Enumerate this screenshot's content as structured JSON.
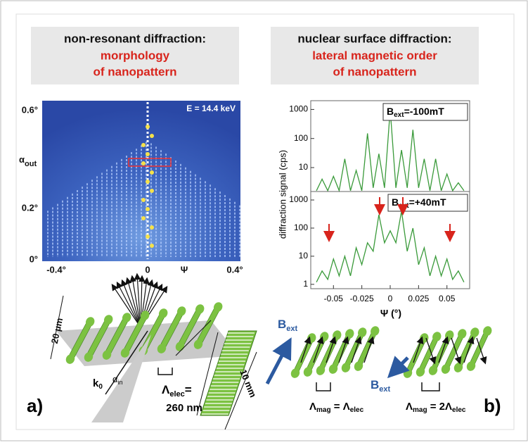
{
  "panel_a": {
    "header": {
      "line1": "non-resonant diffraction:",
      "line2": "morphology",
      "line3": "of nanopattern"
    },
    "energy": "E = 14.4 keV",
    "yticks": [
      "0.6°",
      "0.2°",
      "0°"
    ],
    "ylabel": {
      "symbol": "α",
      "subscript": "out"
    },
    "xticks": [
      "-0.4°",
      "0",
      "0.4°"
    ],
    "xlabel": "Ψ",
    "schematic": {
      "width": "20 µm",
      "length": "10 mm",
      "k": {
        "symbol": "k",
        "subscript": "0"
      },
      "alpha_in": {
        "symbol": "α",
        "subscript": "in"
      },
      "period": {
        "symbol": "Λ",
        "subscript": "elec",
        "equals": "=",
        "value": "260 nm"
      }
    },
    "label": "a)"
  },
  "panel_b": {
    "header": {
      "line1": "nuclear surface diffraction:",
      "line2": "lateral magnetic order",
      "line3": "of nanopattern"
    },
    "field": {
      "symbol": "B",
      "subscript": "ext"
    },
    "relation1": {
      "lambda": "Λ",
      "sub1": "mag",
      "equals": " = ",
      "sub2": "elec"
    },
    "relation2": {
      "lambda": "Λ",
      "sub1": "mag",
      "equals": " = 2",
      "sub2": "elec"
    },
    "label": "b)"
  },
  "chart_data": [
    {
      "type": "line",
      "ylabel": "diffraction signal (cps)",
      "legend": {
        "symbol": "B",
        "subscript": "ext",
        "text": "=-100mT"
      },
      "log_y": true,
      "color": "#3a9a3a",
      "x": [
        -0.065,
        -0.06,
        -0.055,
        -0.05,
        -0.045,
        -0.04,
        -0.035,
        -0.03,
        -0.025,
        -0.02,
        -0.015,
        -0.01,
        -0.005,
        0,
        0.005,
        0.01,
        0.015,
        0.02,
        0.025,
        0.03,
        0.035,
        0.04,
        0.045,
        0.05,
        0.055,
        0.06,
        0.065
      ],
      "values": [
        1.6,
        4,
        1.6,
        5,
        1.6,
        20,
        1.6,
        8,
        1.6,
        150,
        2,
        30,
        2,
        1000,
        2,
        40,
        2,
        200,
        2,
        20,
        1.6,
        20,
        1.6,
        6,
        1.6,
        3,
        1.6
      ],
      "xlim": [
        -0.07,
        0.07
      ],
      "ylim": [
        1.5,
        2000
      ],
      "yticks": [
        10,
        100,
        1000
      ]
    },
    {
      "type": "line",
      "xlabel": "Ψ (°)",
      "legend": {
        "symbol": "B",
        "subscript": "ext",
        "text": "=+40mT"
      },
      "log_y": true,
      "color": "#3a9a3a",
      "x": [
        -0.065,
        -0.06,
        -0.055,
        -0.05,
        -0.045,
        -0.04,
        -0.035,
        -0.03,
        -0.025,
        -0.02,
        -0.015,
        -0.01,
        -0.005,
        0,
        0.005,
        0.01,
        0.015,
        0.02,
        0.025,
        0.03,
        0.035,
        0.04,
        0.045,
        0.05,
        0.055,
        0.06,
        0.065
      ],
      "values": [
        1.2,
        3,
        1.5,
        8,
        2,
        10,
        2,
        20,
        5,
        30,
        15,
        300,
        30,
        80,
        30,
        400,
        15,
        100,
        5,
        20,
        2,
        10,
        2,
        8,
        1.5,
        3,
        1.2
      ],
      "xlim": [
        -0.07,
        0.07
      ],
      "ylim": [
        0.7,
        2000
      ],
      "xticks": [
        -0.05,
        -0.025,
        0,
        0.025,
        0.05
      ],
      "yticks": [
        1,
        10,
        100,
        1000
      ]
    }
  ]
}
